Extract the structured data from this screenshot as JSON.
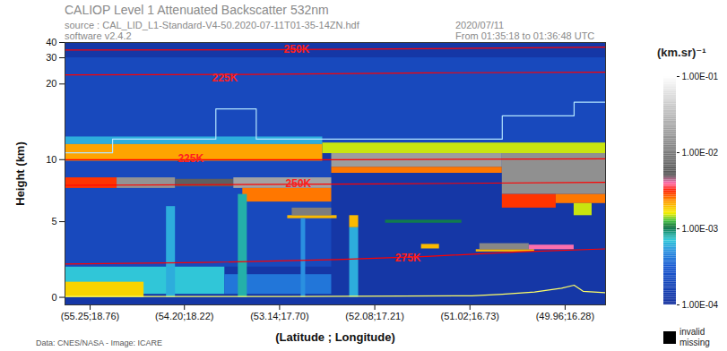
{
  "chart_data": {
    "type": "heatmap",
    "title": "CALIOP Level 1 Attenuated Backscatter 532nm",
    "subtitle": [
      "source : CAL_LID_L1-Standard-V4-50.2020-07-11T01-35-14ZN.hdf",
      "software v2.4.2"
    ],
    "date_text": [
      "2020/07/11",
      "From 01:35:18 to 01:36:48 UTC"
    ],
    "caption": "Data: CNES/NASA - Image: ICARE",
    "xlabel": "(Latitude ; Longitude)",
    "ylabel": "Height (km)",
    "xlim": [
      55.53,
      49.51
    ],
    "xticks": [
      {
        "value": 55.25,
        "label": "(55.25;18.76)"
      },
      {
        "value": 54.2,
        "label": "(54.20;18.22)"
      },
      {
        "value": 53.14,
        "label": "(53.14;17.70)"
      },
      {
        "value": 52.08,
        "label": "(52.08;17.21)"
      },
      {
        "value": 51.02,
        "label": "(51.02;16.73)"
      },
      {
        "value": 49.96,
        "label": "(49.96;16.28)"
      }
    ],
    "ylim": [
      -0.5,
      40
    ],
    "yticks": [
      0,
      5,
      10,
      20,
      30,
      40
    ],
    "cells": [
      {
        "x1": 55.53,
        "x2": 49.51,
        "y1": -0.5,
        "y2": 40,
        "value": 0.00012
      },
      {
        "x1": 55.53,
        "x2": 49.51,
        "y1": 12.0,
        "y2": 30.0,
        "value": 0.0002
      },
      {
        "x1": 55.53,
        "x2": 52.56,
        "y1": 2.0,
        "y2": 9.8,
        "value": 0.0002
      },
      {
        "x1": 55.53,
        "x2": 52.66,
        "y1": 12.0,
        "y2": 13.0,
        "value": 0.0006
      },
      {
        "x1": 55.53,
        "x2": 52.66,
        "y1": 9.8,
        "y2": 12.0,
        "value": 0.0022
      },
      {
        "x1": 52.66,
        "x2": 49.51,
        "y1": 10.8,
        "y2": 12.2,
        "value": 0.0015
      },
      {
        "x1": 52.56,
        "x2": 50.66,
        "y1": 9.0,
        "y2": 10.8,
        "value": 0.018
      },
      {
        "x1": 52.56,
        "x2": 50.66,
        "y1": 8.2,
        "y2": 9.0,
        "value": 0.0025
      },
      {
        "x1": 50.66,
        "x2": 49.51,
        "y1": 6.8,
        "y2": 10.8,
        "value": 0.014
      },
      {
        "x1": 50.66,
        "x2": 50.06,
        "y1": 5.9,
        "y2": 6.8,
        "value": 0.003
      },
      {
        "x1": 50.06,
        "x2": 49.51,
        "y1": 6.2,
        "y2": 6.8,
        "value": 0.0025
      },
      {
        "x1": 49.86,
        "x2": 49.66,
        "y1": 5.4,
        "y2": 6.2,
        "value": 0.0015
      },
      {
        "x1": 55.53,
        "x2": 54.95,
        "y1": 7.2,
        "y2": 7.9,
        "value": 0.003
      },
      {
        "x1": 54.95,
        "x2": 54.3,
        "y1": 7.2,
        "y2": 7.9,
        "value": 0.015
      },
      {
        "x1": 54.3,
        "x2": 53.65,
        "y1": 7.3,
        "y2": 7.8,
        "value": 0.006
      },
      {
        "x1": 53.65,
        "x2": 52.56,
        "y1": 7.2,
        "y2": 7.9,
        "value": 0.02
      },
      {
        "x1": 53.55,
        "x2": 52.56,
        "y1": 6.3,
        "y2": 7.2,
        "value": 0.0025
      },
      {
        "x1": 53.05,
        "x2": 52.5,
        "y1": 5.2,
        "y2": 5.4,
        "value": 0.002
      },
      {
        "x1": 53.0,
        "x2": 52.56,
        "y1": 5.4,
        "y2": 5.9,
        "value": 0.01
      },
      {
        "x1": 52.36,
        "x2": 52.26,
        "y1": 4.6,
        "y2": 5.4,
        "value": 0.002
      },
      {
        "x1": 51.96,
        "x2": 51.11,
        "y1": 4.9,
        "y2": 5.1,
        "value": 0.001
      },
      {
        "x1": 50.95,
        "x2": 50.3,
        "y1": 3.0,
        "y2": 3.15,
        "value": 0.002
      },
      {
        "x1": 50.91,
        "x2": 50.36,
        "y1": 3.15,
        "y2": 3.55,
        "value": 0.012
      },
      {
        "x1": 50.36,
        "x2": 49.86,
        "y1": 3.15,
        "y2": 3.45,
        "value": 0.004
      },
      {
        "x1": 51.56,
        "x2": 51.36,
        "y1": 3.2,
        "y2": 3.5,
        "value": 0.002
      },
      {
        "x1": 55.53,
        "x2": 53.75,
        "y1": 0.2,
        "y2": 2.0,
        "value": 0.0007
      },
      {
        "x1": 55.53,
        "x2": 54.65,
        "y1": 0.0,
        "y2": 1.0,
        "value": 0.0018
      },
      {
        "x1": 53.75,
        "x2": 52.56,
        "y1": 0.2,
        "y2": 1.5,
        "value": 0.0004
      },
      {
        "x1": 54.4,
        "x2": 54.3,
        "y1": 0.0,
        "y2": 6.0,
        "value": 0.0006
      },
      {
        "x1": 53.6,
        "x2": 53.5,
        "y1": 0.0,
        "y2": 6.8,
        "value": 0.0008
      },
      {
        "x1": 52.9,
        "x2": 52.85,
        "y1": 0.0,
        "y2": 5.2,
        "value": 0.0005
      },
      {
        "x1": 52.36,
        "x2": 52.26,
        "y1": 0.0,
        "y2": 4.6,
        "value": 0.0006
      }
    ],
    "series": [
      {
        "color": "#ff0000",
        "x": [
          55.53,
          53.0,
          51.0,
          49.51
        ],
        "values": [
          35.0,
          35.3,
          36.2,
          37.0
        ]
      },
      {
        "color": "#ff0000",
        "x": [
          55.53,
          53.5,
          51.5,
          49.51
        ],
        "values": [
          23.2,
          23.4,
          24.0,
          24.3
        ]
      },
      {
        "color": "#ff0000",
        "x": [
          55.53,
          52.5,
          49.51
        ],
        "values": [
          10.0,
          10.0,
          10.1
        ]
      },
      {
        "color": "#ff0000",
        "x": [
          55.53,
          52.0,
          49.51
        ],
        "values": [
          7.4,
          7.5,
          7.6
        ]
      },
      {
        "color": "#ff0000",
        "x": [
          55.53,
          54.0,
          52.5,
          51.5,
          50.5,
          49.51
        ],
        "values": [
          2.2,
          2.3,
          2.5,
          2.7,
          3.0,
          3.2
        ]
      },
      {
        "color": "#b4e6ff",
        "x": [
          55.53,
          55.0,
          55.0,
          53.85,
          53.85,
          53.4,
          53.4,
          50.66,
          50.66,
          49.86,
          49.86,
          49.51
        ],
        "values": [
          10.9,
          10.9,
          12.7,
          12.7,
          16.7,
          16.7,
          12.7,
          12.7,
          15.8,
          15.8,
          17.6,
          17.6
        ]
      },
      {
        "color": "#ffff66",
        "x": [
          55.53,
          53.0,
          51.0,
          50.66,
          50.3,
          50.0,
          49.86,
          49.76,
          49.51
        ],
        "values": [
          0.05,
          0.05,
          0.1,
          0.2,
          0.35,
          0.6,
          0.8,
          0.4,
          0.3
        ]
      }
    ],
    "annotations": [
      {
        "text": "250K",
        "x": 52.95,
        "y": 35.3,
        "color": "#ff2020"
      },
      {
        "text": "225K",
        "x": 53.75,
        "y": 21.8,
        "color": "#ff2020"
      },
      {
        "text": "225K",
        "x": 54.13,
        "y": 10.1,
        "color": "#ff2020"
      },
      {
        "text": "250K",
        "x": 52.93,
        "y": 7.5,
        "color": "#ff2020"
      },
      {
        "text": "275K",
        "x": 51.71,
        "y": 2.6,
        "color": "#ff2020"
      }
    ],
    "colorbar": {
      "label": "(km.sr)⁻¹",
      "log": true,
      "range": [
        0.0001,
        0.1
      ],
      "ticks": [
        {
          "value": 0.1,
          "label": "1.00E-01"
        },
        {
          "value": 0.01,
          "label": "1.00E-02"
        },
        {
          "value": 0.001,
          "label": "1.00E-03"
        },
        {
          "value": 0.0001,
          "label": "1.00E-04"
        }
      ],
      "missing_label": [
        "invalid",
        "missing"
      ]
    }
  }
}
